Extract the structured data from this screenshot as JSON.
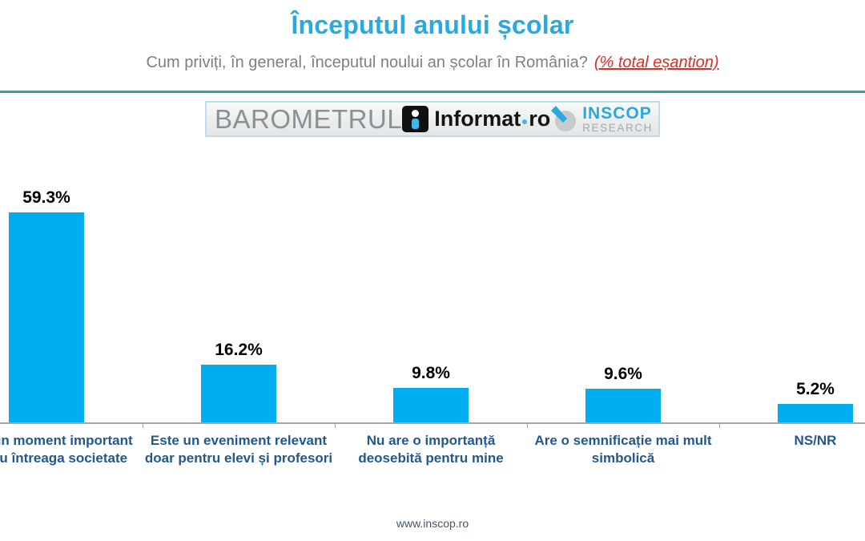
{
  "header": {
    "title": "Începutul anului școlar",
    "question": "Cum priviți, în general, începutul noului an școlar în România?",
    "note": "(% total eșantion)"
  },
  "banner": {
    "barometrul": "BAROMETRUL",
    "informat": "Informat",
    "informat_suffix": "ro",
    "inscop": "INSCOP",
    "research": "RESEARCH"
  },
  "chart_data": {
    "type": "bar",
    "title": "Începutul anului școlar",
    "categories": [
      "Este un moment important pentru întreaga societate",
      "Este un eveniment relevant doar pentru elevi și profesori",
      "Nu are o importanță deosebită pentru mine",
      "Are o semnificație mai mult simbolică",
      "NS/NR"
    ],
    "values": [
      59.3,
      16.2,
      9.8,
      9.6,
      5.2
    ],
    "value_labels": [
      "59.3%",
      "16.2%",
      "9.8%",
      "9.6%",
      "5.2%"
    ],
    "bar_color": "#00AEEF",
    "ylim": [
      0,
      65
    ],
    "grid": false,
    "legend": false,
    "xlabel": "",
    "ylabel": ""
  },
  "footer": {
    "url": "www.inscop.ro"
  },
  "colors": {
    "title_blue": "#29A9E0",
    "bar_cyan": "#00AEEF",
    "category_label_blue": "#24588A",
    "note_red": "#E02B20",
    "question_gray": "#7F7F7F",
    "axis_gray": "#A5A5A5",
    "rule_teal": "#2B9DC9"
  }
}
